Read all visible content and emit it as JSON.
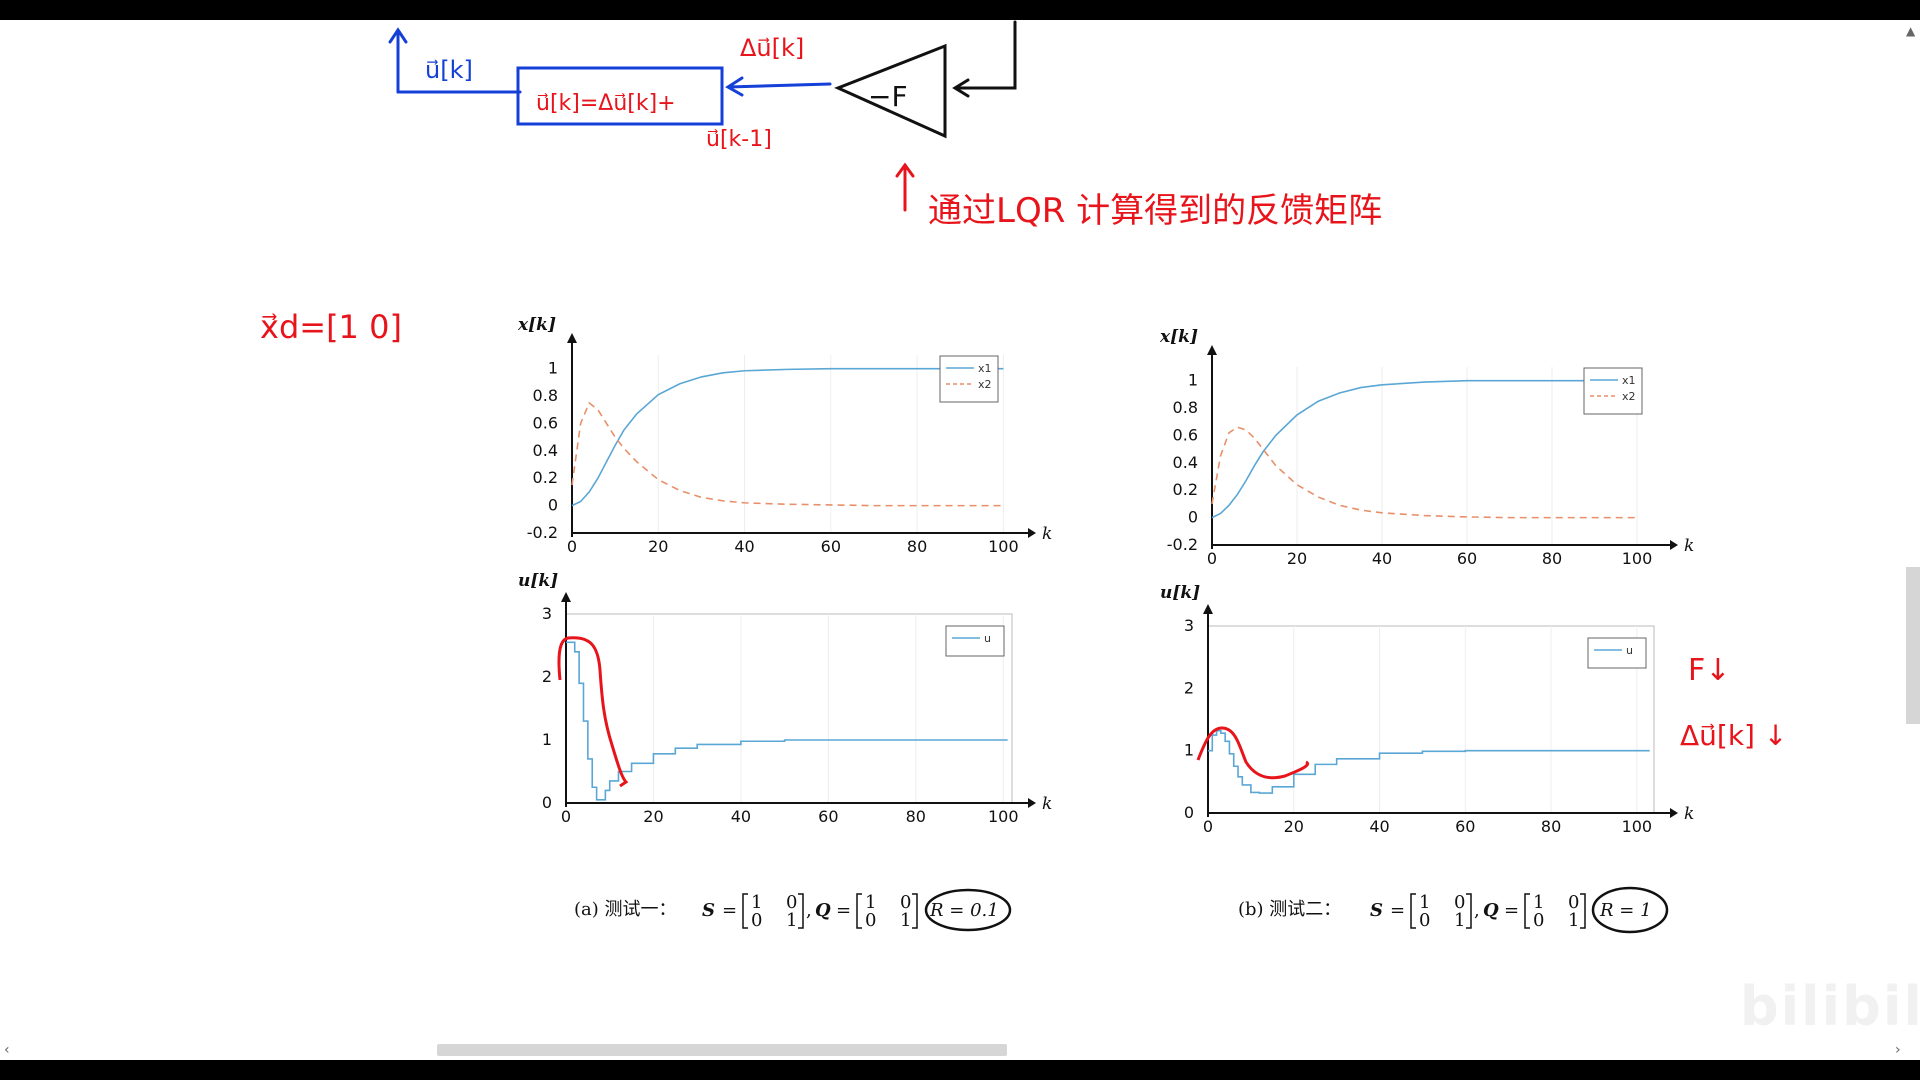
{
  "annotations": {
    "u_k": "u⃗[k]",
    "block_formula": "u⃗[k]=Δu⃗[k]+",
    "delta_u": "Δu⃗[k]",
    "u_k_minus_1": "u⃗[k-1]",
    "gain": "−F",
    "lqr_note": "通过LQR 计算得到的反馈矩阵",
    "xd": "x⃗d=[1 0]",
    "f_small": "F↓",
    "delta_u_down": "Δu⃗[k] ↓"
  },
  "figures": [
    {
      "id": "a",
      "caption_prefix": "(a) 测试一：",
      "S": "S",
      "Q": "Q",
      "R": "R = 0.1",
      "state_ylabel": "x[k]",
      "input_ylabel": "u[k]",
      "xlabel": "k"
    },
    {
      "id": "b",
      "caption_prefix": "(b) 测试二：",
      "S": "S",
      "Q": "Q",
      "R": "R = 1",
      "state_ylabel": "x[k]",
      "input_ylabel": "u[k]",
      "xlabel": "k"
    }
  ],
  "colors": {
    "x1": "#5aa7d6",
    "x2": "#e8906a",
    "u": "#5aa7d6",
    "annotation_red": "#e8141b",
    "annotation_blue": "#1440d8"
  },
  "chart_data": [
    {
      "type": "line",
      "panel": "a-state",
      "xlabel": "k",
      "ylabel": "x[k]",
      "xlim": [
        0,
        102
      ],
      "ylim": [
        -0.2,
        1.1
      ],
      "xticks": [
        0,
        20,
        40,
        60,
        80,
        100
      ],
      "yticks": [
        -0.2,
        0,
        0.2,
        0.4,
        0.6,
        0.8,
        1
      ],
      "ytick_labels": [
        "-0.2",
        "0",
        "0.2",
        "0.4",
        "0.6",
        "0.8",
        "1"
      ],
      "x": [
        0,
        2,
        4,
        6,
        8,
        10,
        12,
        15,
        20,
        25,
        30,
        35,
        40,
        50,
        60,
        70,
        80,
        90,
        100
      ],
      "series": [
        {
          "name": "x1",
          "style": "solid",
          "values": [
            0.0,
            0.03,
            0.1,
            0.2,
            0.32,
            0.44,
            0.55,
            0.67,
            0.81,
            0.89,
            0.94,
            0.97,
            0.985,
            0.995,
            1.0,
            1.0,
            1.0,
            1.0,
            1.0
          ]
        },
        {
          "name": "x2",
          "style": "dashed",
          "values": [
            0.15,
            0.6,
            0.75,
            0.7,
            0.6,
            0.5,
            0.42,
            0.32,
            0.19,
            0.11,
            0.06,
            0.035,
            0.02,
            0.01,
            0.005,
            0.0,
            0.0,
            0.0,
            0.0
          ]
        }
      ],
      "legend": "top-right"
    },
    {
      "type": "line",
      "panel": "a-input",
      "xlabel": "k",
      "ylabel": "u[k]",
      "xlim": [
        0,
        102
      ],
      "ylim": [
        0,
        3
      ],
      "xticks": [
        0,
        20,
        40,
        60,
        80,
        100
      ],
      "yticks": [
        0,
        1,
        2,
        3
      ],
      "step": true,
      "x": [
        0,
        1,
        2,
        3,
        4,
        5,
        6,
        7,
        8,
        9,
        10,
        12,
        15,
        20,
        25,
        30,
        40,
        50,
        60,
        80,
        100
      ],
      "series": [
        {
          "name": "u",
          "style": "step",
          "values": [
            2.55,
            2.55,
            2.4,
            1.9,
            1.3,
            0.7,
            0.25,
            0.05,
            0.05,
            0.2,
            0.35,
            0.5,
            0.63,
            0.78,
            0.87,
            0.93,
            0.98,
            1.0,
            1.0,
            1.0,
            1.0
          ]
        }
      ],
      "legend": "top-right"
    },
    {
      "type": "line",
      "panel": "b-state",
      "xlabel": "k",
      "ylabel": "x[k]",
      "xlim": [
        0,
        104
      ],
      "ylim": [
        -0.2,
        1.1
      ],
      "xticks": [
        0,
        20,
        40,
        60,
        80,
        100
      ],
      "yticks": [
        -0.2,
        0,
        0.2,
        0.4,
        0.6,
        0.8,
        1
      ],
      "ytick_labels": [
        "-0.2",
        "0",
        "0.2",
        "0.4",
        "0.6",
        "0.8",
        "1"
      ],
      "x": [
        0,
        2,
        4,
        6,
        8,
        10,
        12,
        15,
        20,
        25,
        30,
        35,
        40,
        50,
        60,
        70,
        80,
        90,
        100
      ],
      "series": [
        {
          "name": "x1",
          "style": "solid",
          "values": [
            0.0,
            0.03,
            0.09,
            0.17,
            0.27,
            0.38,
            0.48,
            0.6,
            0.75,
            0.85,
            0.91,
            0.95,
            0.97,
            0.99,
            1.0,
            1.0,
            1.0,
            1.0,
            1.0
          ]
        },
        {
          "name": "x2",
          "style": "dashed",
          "values": [
            0.1,
            0.45,
            0.62,
            0.66,
            0.64,
            0.58,
            0.5,
            0.38,
            0.24,
            0.15,
            0.09,
            0.055,
            0.035,
            0.015,
            0.005,
            0.0,
            0.0,
            0.0,
            0.0
          ]
        }
      ],
      "legend": "top-right"
    },
    {
      "type": "line",
      "panel": "b-input",
      "xlabel": "k",
      "ylabel": "u[k]",
      "xlim": [
        0,
        104
      ],
      "ylim": [
        0,
        3
      ],
      "xticks": [
        0,
        20,
        40,
        60,
        80,
        100
      ],
      "yticks": [
        0,
        1,
        2,
        3
      ],
      "step": true,
      "x": [
        0,
        1,
        2,
        3,
        4,
        5,
        6,
        7,
        8,
        10,
        12,
        15,
        20,
        25,
        30,
        40,
        50,
        60,
        80,
        100
      ],
      "series": [
        {
          "name": "u",
          "style": "step",
          "values": [
            1.0,
            1.25,
            1.32,
            1.28,
            1.15,
            0.95,
            0.75,
            0.58,
            0.45,
            0.33,
            0.32,
            0.42,
            0.62,
            0.78,
            0.87,
            0.96,
            0.99,
            1.0,
            1.0,
            1.0
          ]
        }
      ],
      "legend": "top-right"
    }
  ]
}
